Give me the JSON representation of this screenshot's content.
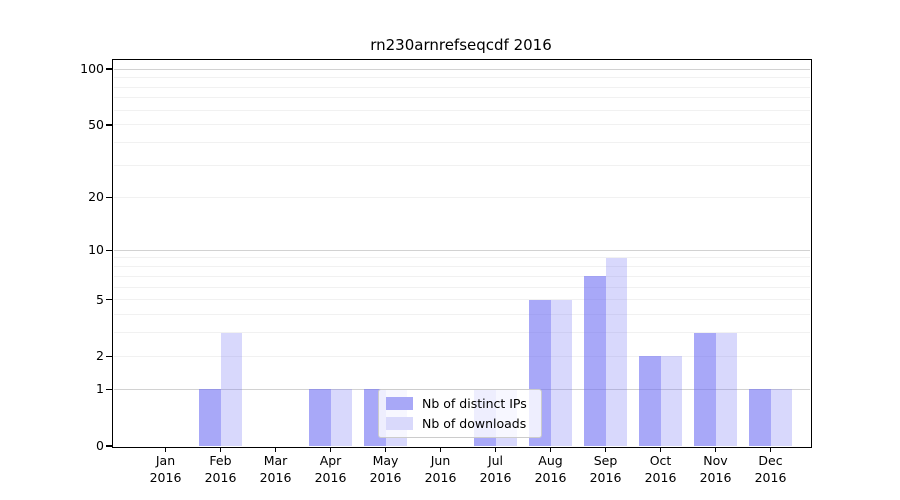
{
  "chart_data": {
    "type": "bar",
    "title": "rn230arnrefseqcdf 2016",
    "scale": "log10(1+y)",
    "grid": true,
    "categories": [
      "Jan",
      "Feb",
      "Mar",
      "Apr",
      "May",
      "Jun",
      "Jul",
      "Aug",
      "Sep",
      "Oct",
      "Nov",
      "Dec"
    ],
    "category_year": "2016",
    "series": [
      {
        "name": "Nb of distinct IPs",
        "values": [
          0,
          1,
          0,
          1,
          1,
          0,
          1,
          5,
          7,
          2,
          3,
          1
        ],
        "fill": "rgba(110,110,243,0.6)",
        "legend_color": "#a8a8f7"
      },
      {
        "name": "Nb of downloads",
        "values": [
          0,
          3,
          0,
          1,
          1,
          0,
          1,
          5,
          9,
          2,
          3,
          1
        ],
        "fill": "rgba(110,110,243,0.27)",
        "legend_color": "#d9d9fb"
      }
    ],
    "y_ticks": [
      0,
      1,
      2,
      5,
      10,
      20,
      50,
      100
    ],
    "y_minor_gridlines": [
      2,
      3,
      4,
      5,
      6,
      7,
      8,
      9,
      20,
      30,
      40,
      50,
      60,
      70,
      80,
      90
    ],
    "y_major_gridlines": [
      1,
      10,
      100
    ],
    "ylim": [
      0,
      112
    ],
    "legend_position": "lower center",
    "colors": {
      "bar_ips": "#a8a8f7",
      "bar_downloads": "#d9d9fb",
      "grid_minor": "#f1f1f1",
      "grid_major": "#d2d2d2",
      "axis": "#000000",
      "background": "#ffffff"
    }
  }
}
